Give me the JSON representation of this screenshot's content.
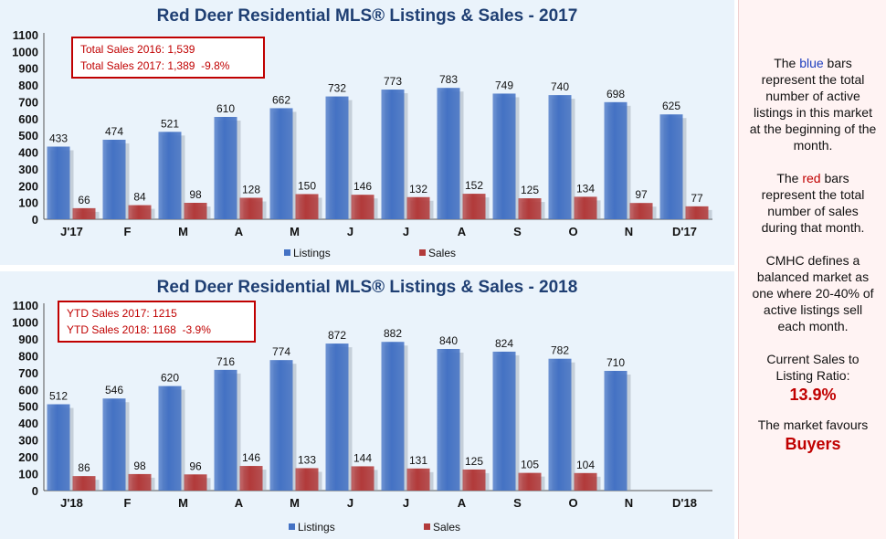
{
  "colors": {
    "listings": "#4472c4",
    "sales": "#b23a3a",
    "title": "#1f3f73",
    "callout": "#c00000"
  },
  "chart_data": [
    {
      "type": "bar",
      "title": "Red Deer Residential MLS® Listings & Sales - 2017",
      "categories": [
        "J'17",
        "F",
        "M",
        "A",
        "M",
        "J",
        "J",
        "A",
        "S",
        "O",
        "N",
        "D'17"
      ],
      "series": [
        {
          "name": "Listings",
          "values": [
            433,
            474,
            521,
            610,
            662,
            732,
            773,
            783,
            749,
            740,
            698,
            625
          ]
        },
        {
          "name": "Sales",
          "values": [
            66,
            84,
            98,
            128,
            150,
            146,
            132,
            152,
            125,
            134,
            97,
            77
          ]
        }
      ],
      "ylim": [
        0,
        1100
      ],
      "yticks": [
        "0",
        "100",
        "200",
        "300",
        "400",
        "500",
        "600",
        "700",
        "800",
        "900",
        "1000",
        "1100"
      ],
      "legend": "bottom",
      "callout": [
        "Total Sales 2016: 1,539",
        "Total Sales 2017: 1,389  -9.8%"
      ]
    },
    {
      "type": "bar",
      "title": "Red Deer Residential MLS® Listings & Sales - 2018",
      "categories": [
        "J'18",
        "F",
        "M",
        "A",
        "M",
        "J",
        "J",
        "A",
        "S",
        "O",
        "N",
        "D'18"
      ],
      "series": [
        {
          "name": "Listings",
          "values": [
            512,
            546,
            620,
            716,
            774,
            872,
            882,
            840,
            824,
            782,
            710,
            null
          ]
        },
        {
          "name": "Sales",
          "values": [
            86,
            98,
            96,
            146,
            133,
            144,
            131,
            125,
            105,
            104,
            null,
            null
          ]
        }
      ],
      "ylim": [
        0,
        1100
      ],
      "yticks": [
        "0",
        "100",
        "200",
        "300",
        "400",
        "500",
        "600",
        "700",
        "800",
        "900",
        "1000",
        "1100"
      ],
      "legend": "bottom",
      "callout": [
        "YTD Sales 2017: 1215",
        "YTD Sales 2018: 1168  -3.9%"
      ]
    }
  ],
  "sidebar": {
    "p1_a": "The ",
    "p1_blue": "blue",
    "p1_b": " bars represent the total number of active listings in this market at the beginning of the month.",
    "p2_a": "The ",
    "p2_red": "red",
    "p2_b": " bars represent the total number of sales during that month.",
    "p3": "CMHC defines a balanced market as one where 20-40% of active listings sell each month.",
    "p4": "Current Sales to Listing Ratio:",
    "ratio": "13.9%",
    "p5": "The market favours",
    "favours": "Buyers"
  }
}
